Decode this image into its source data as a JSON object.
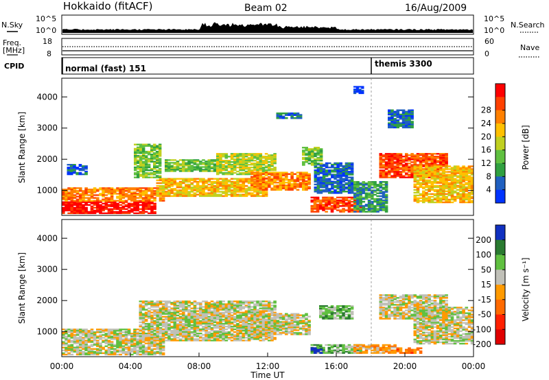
{
  "header": {
    "station": "Hokkaido (fitACF)",
    "beam": "Beam 02",
    "date": "16/Aug/2009"
  },
  "top_panels": {
    "nsky_label": "N.Sky",
    "nsearch_label": "N.Search",
    "nsky_ticks": [
      "10^5",
      "10^0"
    ],
    "nsearch_ticks": [
      "10^5",
      "10^0"
    ],
    "freq_label_1": "Freq.",
    "freq_label_2": "[MHz]",
    "freq_ticks": [
      "18",
      "8"
    ],
    "nave_label": "Nave",
    "nave_ticks": [
      "60",
      "0"
    ],
    "cpid_label": "CPID",
    "cpid_segments": [
      {
        "label": "normal (fast) 151",
        "start_hour": 0
      },
      {
        "label": "themis 3300",
        "start_hour": 18
      }
    ]
  },
  "chart_data": [
    {
      "type": "heatmap",
      "name": "power",
      "ylabel": "Slant Range [km]",
      "xlabel": "",
      "ylim": [
        200,
        4600
      ],
      "xlim": [
        0,
        24
      ],
      "yticks": [
        "1000",
        "2000",
        "3000",
        "4000"
      ],
      "colorbar_label": "Power [dB]",
      "colorbar_ticks": [
        "4",
        "8",
        "12",
        "16",
        "20",
        "24",
        "28"
      ],
      "colorbar_colors": [
        "#0033ff",
        "#2060c0",
        "#30a040",
        "#60c040",
        "#c0d020",
        "#ffc000",
        "#ff8000",
        "#ff4000",
        "#ff0000"
      ],
      "regions": [
        {
          "t0": 0.0,
          "t1": 5.5,
          "r0": 250,
          "r1": 650,
          "level": 8
        },
        {
          "t0": 0.0,
          "t1": 6.0,
          "r0": 650,
          "r1": 1100,
          "level": 6
        },
        {
          "t0": 0.3,
          "t1": 1.5,
          "r0": 1500,
          "r1": 1850,
          "level": 1
        },
        {
          "t0": 4.2,
          "t1": 5.8,
          "r0": 1400,
          "r1": 2500,
          "level": 3
        },
        {
          "t0": 5.5,
          "t1": 12.0,
          "r0": 800,
          "r1": 1400,
          "level": 5
        },
        {
          "t0": 6.0,
          "t1": 9.0,
          "r0": 1600,
          "r1": 2000,
          "level": 3
        },
        {
          "t0": 9.0,
          "t1": 12.5,
          "r0": 1500,
          "r1": 2200,
          "level": 4
        },
        {
          "t0": 11.0,
          "t1": 14.5,
          "r0": 1000,
          "r1": 1600,
          "level": 6
        },
        {
          "t0": 14.5,
          "t1": 17.5,
          "r0": 300,
          "r1": 800,
          "level": 7
        },
        {
          "t0": 14.7,
          "t1": 17.0,
          "r0": 900,
          "r1": 1900,
          "level": 1
        },
        {
          "t0": 14.0,
          "t1": 15.2,
          "r0": 1800,
          "r1": 2400,
          "level": 3
        },
        {
          "t0": 17.0,
          "t1": 19.0,
          "r0": 300,
          "r1": 1300,
          "level": 2
        },
        {
          "t0": 18.5,
          "t1": 22.5,
          "r0": 1400,
          "r1": 2200,
          "level": 7
        },
        {
          "t0": 20.5,
          "t1": 24.0,
          "r0": 600,
          "r1": 1800,
          "level": 5
        },
        {
          "t0": 12.5,
          "t1": 14.0,
          "r0": 3300,
          "r1": 3500,
          "level": 1
        },
        {
          "t0": 19.0,
          "t1": 20.5,
          "r0": 3000,
          "r1": 3600,
          "level": 1
        },
        {
          "t0": 17.0,
          "t1": 17.6,
          "r0": 4100,
          "r1": 4350,
          "level": 0
        }
      ]
    },
    {
      "type": "heatmap",
      "name": "velocity",
      "ylabel": "Slant Range [km]",
      "xlabel": "Time UT",
      "ylim": [
        200,
        4600
      ],
      "xlim": [
        0,
        24
      ],
      "yticks": [
        "1000",
        "2000",
        "3000",
        "4000"
      ],
      "xticks": [
        "00:00",
        "04:00",
        "08:00",
        "12:00",
        "16:00",
        "20:00",
        "00:00"
      ],
      "colorbar_label": "Velocity [m s⁻¹]",
      "colorbar_ticks": [
        "200",
        "100",
        "50",
        "15",
        "-15",
        "-50",
        "-100",
        "-200"
      ],
      "colorbar_colors": [
        "#1030c0",
        "#2a7a30",
        "#60c040",
        "#c0c0b8",
        "#ff9a00",
        "#ff6a00",
        "#ff2000",
        "#e00000"
      ],
      "regions": [
        {
          "t0": 0.0,
          "t1": 6.0,
          "r0": 250,
          "r1": 1100,
          "level": 3
        },
        {
          "t0": 4.5,
          "t1": 12.5,
          "r0": 700,
          "r1": 2000,
          "level": 3
        },
        {
          "t0": 11.0,
          "t1": 14.5,
          "r0": 900,
          "r1": 1600,
          "level": 3
        },
        {
          "t0": 14.5,
          "t1": 17.5,
          "r0": 300,
          "r1": 600,
          "level": 2
        },
        {
          "t0": 15.0,
          "t1": 17.0,
          "r0": 1400,
          "r1": 1850,
          "level": 2
        },
        {
          "t0": 14.5,
          "t1": 15.2,
          "r0": 300,
          "r1": 500,
          "level": 0
        },
        {
          "t0": 18.5,
          "t1": 22.5,
          "r0": 1400,
          "r1": 2200,
          "level": 3
        },
        {
          "t0": 20.5,
          "t1": 24.0,
          "r0": 600,
          "r1": 1800,
          "level": 3
        },
        {
          "t0": 17.0,
          "t1": 19.5,
          "r0": 300,
          "r1": 600,
          "level": 4
        },
        {
          "t0": 19.5,
          "t1": 21.0,
          "r0": 300,
          "r1": 500,
          "level": 5
        }
      ]
    }
  ]
}
